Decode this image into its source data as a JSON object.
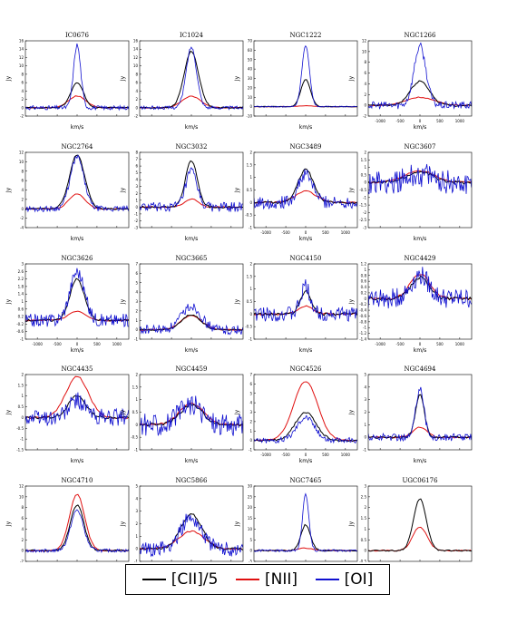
{
  "legend": [
    {
      "label": "[CII]/5",
      "color": "#000000"
    },
    {
      "label": "[NII]",
      "color": "#e01010"
    },
    {
      "label": "[OI]",
      "color": "#1010d0"
    }
  ],
  "chart_data": [
    {
      "type": "line",
      "title": "IC0676",
      "xlabel": "",
      "ylabel": "Jy",
      "ylim": [
        -2,
        16
      ],
      "yticks": [
        -2,
        0,
        2,
        4,
        6,
        8,
        10,
        12,
        14,
        16
      ],
      "show_xticks": false,
      "peaks": {
        "cii": 6,
        "nii": 2.8,
        "oi": 15
      },
      "widths": {
        "cii": 160,
        "nii": 220,
        "oi": 90
      },
      "noise": {
        "cii": 0.15,
        "nii": 0.1,
        "oi": 0.5
      }
    },
    {
      "type": "line",
      "title": "IC1024",
      "xlabel": "",
      "ylabel": "Jy",
      "ylim": [
        -2,
        16
      ],
      "yticks": [
        -2,
        0,
        2,
        4,
        6,
        8,
        10,
        12,
        14,
        16
      ],
      "show_xticks": false,
      "peaks": {
        "cii": 13.5,
        "nii": 2.8,
        "oi": 14.5
      },
      "widths": {
        "cii": 180,
        "nii": 230,
        "oi": 130
      },
      "noise": {
        "cii": 0.15,
        "nii": 0.1,
        "oi": 0.4
      }
    },
    {
      "type": "line",
      "title": "NGC1222",
      "xlabel": "",
      "ylabel": "Jy",
      "ylim": [
        -10,
        70
      ],
      "yticks": [
        -10,
        0,
        10,
        20,
        30,
        40,
        50,
        60,
        70
      ],
      "show_xticks": false,
      "peaks": {
        "cii": 29,
        "nii": 1,
        "oi": 65
      },
      "widths": {
        "cii": 120,
        "nii": 200,
        "oi": 95
      },
      "noise": {
        "cii": 0.3,
        "nii": 0.2,
        "oi": 0.6
      }
    },
    {
      "type": "line",
      "title": "NGC1266",
      "xlabel": "",
      "ylabel": "Jy",
      "ylim": [
        -2,
        12
      ],
      "yticks": [
        -2,
        0,
        2,
        4,
        6,
        8,
        10,
        12
      ],
      "show_xticks": true,
      "peaks": {
        "cii": 4.5,
        "nii": 1.5,
        "oi": 11
      },
      "widths": {
        "cii": 240,
        "nii": 350,
        "oi": 150
      },
      "noise": {
        "cii": 0.2,
        "nii": 0.1,
        "oi": 0.7
      }
    },
    {
      "type": "line",
      "title": "NGC2764",
      "xlabel": "",
      "ylabel": "Jy",
      "ylim": [
        -4,
        12
      ],
      "yticks": [
        -4,
        -2,
        0,
        2,
        4,
        6,
        8,
        10,
        12
      ],
      "show_xticks": false,
      "peaks": {
        "cii": 11.5,
        "nii": 3.2,
        "oi": 11
      },
      "widths": {
        "cii": 190,
        "nii": 200,
        "oi": 170
      },
      "noise": {
        "cii": 0.15,
        "nii": 0.1,
        "oi": 0.6
      }
    },
    {
      "type": "line",
      "title": "NGC3032",
      "xlabel": "",
      "ylabel": "Jy",
      "ylim": [
        -3,
        8
      ],
      "yticks": [
        -3,
        -2,
        -1,
        0,
        1,
        2,
        3,
        4,
        5,
        6,
        7,
        8
      ],
      "show_xticks": false,
      "peaks": {
        "cii": 6.8,
        "nii": 1.2,
        "oi": 5.2
      },
      "widths": {
        "cii": 150,
        "nii": 170,
        "oi": 140
      },
      "noise": {
        "cii": 0.15,
        "nii": 0.1,
        "oi": 0.7
      }
    },
    {
      "type": "line",
      "title": "NGC3489",
      "xlabel": "",
      "ylabel": "Jy",
      "ylim": [
        -1.0,
        2.0
      ],
      "yticks": [
        -1.0,
        -0.5,
        0.0,
        0.5,
        1.0,
        1.5,
        2.0
      ],
      "show_xticks": true,
      "peaks": {
        "cii": 1.3,
        "nii": 0.45,
        "oi": 1.1
      },
      "widths": {
        "cii": 200,
        "nii": 260,
        "oi": 180
      },
      "noise": {
        "cii": 0.05,
        "nii": 0.03,
        "oi": 0.25
      }
    },
    {
      "type": "line",
      "title": "NGC3607",
      "xlabel": "",
      "ylabel": "Jy",
      "ylim": [
        -3.0,
        2.0
      ],
      "yticks": [
        -3.0,
        -2.5,
        -2.0,
        -1.5,
        -1.0,
        -0.5,
        0.0,
        0.5,
        1.0,
        1.5,
        2.0
      ],
      "show_xticks": false,
      "peaks": {
        "cii": 0.7,
        "nii": 0.8,
        "oi": 0.5
      },
      "widths": {
        "cii": 320,
        "nii": 380,
        "oi": 300
      },
      "noise": {
        "cii": 0.1,
        "nii": 0.06,
        "oi": 0.8
      }
    },
    {
      "type": "line",
      "title": "NGC3626",
      "xlabel": "",
      "ylabel": "Jy",
      "ylim": [
        -1.0,
        3.0
      ],
      "yticks": [
        -1.0,
        -0.6,
        -0.2,
        0.2,
        0.6,
        1.0,
        1.4,
        1.8,
        2.2,
        2.6,
        3.0
      ],
      "show_xticks": true,
      "peaks": {
        "cii": 2.2,
        "nii": 0.5,
        "oi": 2.6
      },
      "widths": {
        "cii": 180,
        "nii": 220,
        "oi": 180
      },
      "noise": {
        "cii": 0.06,
        "nii": 0.04,
        "oi": 0.35
      }
    },
    {
      "type": "line",
      "title": "NGC3665",
      "xlabel": "",
      "ylabel": "Jy",
      "ylim": [
        -1,
        7
      ],
      "yticks": [
        -1,
        0,
        1,
        2,
        3,
        4,
        5,
        6,
        7
      ],
      "show_xticks": false,
      "peaks": {
        "cii": 1.6,
        "nii": 1.5,
        "oi": 2.5
      },
      "widths": {
        "cii": 240,
        "nii": 260,
        "oi": 240
      },
      "noise": {
        "cii": 0.08,
        "nii": 0.06,
        "oi": 0.5
      }
    },
    {
      "type": "line",
      "title": "NGC4150",
      "xlabel": "",
      "ylabel": "Jy",
      "ylim": [
        -1.0,
        2.0
      ],
      "yticks": [
        -1.0,
        -0.5,
        0.0,
        0.5,
        1.0,
        1.5,
        2.0
      ],
      "show_xticks": false,
      "peaks": {
        "cii": 0.9,
        "nii": 0.3,
        "oi": 1.1
      },
      "widths": {
        "cii": 140,
        "nii": 200,
        "oi": 120
      },
      "noise": {
        "cii": 0.06,
        "nii": 0.04,
        "oi": 0.3
      }
    },
    {
      "type": "line",
      "title": "NGC4429",
      "xlabel": "",
      "ylabel": "Jy",
      "ylim": [
        -1.4,
        1.2
      ],
      "yticks": [
        -1.4,
        -1.2,
        -1.0,
        -0.8,
        -0.6,
        -0.4,
        -0.2,
        0.0,
        0.2,
        0.4,
        0.6,
        0.8,
        1.0,
        1.2
      ],
      "show_xticks": true,
      "peaks": {
        "cii": 0.75,
        "nii": 0.85,
        "oi": 0.8
      },
      "widths": {
        "cii": 220,
        "nii": 250,
        "oi": 220
      },
      "noise": {
        "cii": 0.06,
        "nii": 0.04,
        "oi": 0.35
      }
    },
    {
      "type": "line",
      "title": "NGC4435",
      "xlabel": "",
      "ylabel": "Jy",
      "ylim": [
        -1.5,
        2.0
      ],
      "yticks": [
        -1.5,
        -1.0,
        -0.5,
        0.0,
        0.5,
        1.0,
        1.5,
        2.0
      ],
      "show_xticks": false,
      "peaks": {
        "cii": 1.0,
        "nii": 1.9,
        "oi": 0.8
      },
      "widths": {
        "cii": 220,
        "nii": 280,
        "oi": 200
      },
      "noise": {
        "cii": 0.06,
        "nii": 0.04,
        "oi": 0.4
      }
    },
    {
      "type": "line",
      "title": "NGC4459",
      "xlabel": "",
      "ylabel": "Jy",
      "ylim": [
        -1.0,
        2.0
      ],
      "yticks": [
        -1.0,
        -0.5,
        0.0,
        0.5,
        1.0,
        1.5,
        2.0
      ],
      "show_xticks": false,
      "peaks": {
        "cii": 0.8,
        "nii": 0.85,
        "oi": 0.8
      },
      "widths": {
        "cii": 280,
        "nii": 300,
        "oi": 280
      },
      "noise": {
        "cii": 0.06,
        "nii": 0.04,
        "oi": 0.45
      }
    },
    {
      "type": "line",
      "title": "NGC4526",
      "xlabel": "",
      "ylabel": "Jy",
      "ylim": [
        -1,
        7
      ],
      "yticks": [
        -1,
        0,
        1,
        2,
        3,
        4,
        5,
        6,
        7
      ],
      "show_xticks": true,
      "peaks": {
        "cii": 3.0,
        "nii": 6.3,
        "oi": 2.5
      },
      "widths": {
        "cii": 260,
        "nii": 300,
        "oi": 220
      },
      "noise": {
        "cii": 0.1,
        "nii": 0.06,
        "oi": 0.3
      }
    },
    {
      "type": "line",
      "title": "NGC4694",
      "xlabel": "",
      "ylabel": "Jy",
      "ylim": [
        -1,
        5
      ],
      "yticks": [
        -1,
        0,
        1,
        2,
        3,
        4,
        5
      ],
      "show_xticks": false,
      "peaks": {
        "cii": 3.4,
        "nii": 0.8,
        "oi": 4.0
      },
      "widths": {
        "cii": 110,
        "nii": 170,
        "oi": 100
      },
      "noise": {
        "cii": 0.08,
        "nii": 0.05,
        "oi": 0.3
      }
    },
    {
      "type": "line",
      "title": "NGC4710",
      "xlabel": "",
      "ylabel": "Jy",
      "ylim": [
        -2,
        12
      ],
      "yticks": [
        -2,
        0,
        2,
        4,
        6,
        8,
        10,
        12
      ],
      "show_xticks": true,
      "peaks": {
        "cii": 8.5,
        "nii": 10.5,
        "oi": 7.5
      },
      "widths": {
        "cii": 170,
        "nii": 190,
        "oi": 160
      },
      "noise": {
        "cii": 0.15,
        "nii": 0.1,
        "oi": 0.3
      }
    },
    {
      "type": "line",
      "title": "NGC5866",
      "xlabel": "",
      "ylabel": "Jy",
      "ylim": [
        -1,
        5
      ],
      "yticks": [
        -1,
        0,
        1,
        2,
        3,
        4,
        5
      ],
      "show_xticks": true,
      "peaks": {
        "cii": 2.8,
        "nii": 1.4,
        "oi": 2.5
      },
      "widths": {
        "cii": 260,
        "nii": 320,
        "oi": 260
      },
      "noise": {
        "cii": 0.1,
        "nii": 0.06,
        "oi": 0.6
      }
    },
    {
      "type": "line",
      "title": "NGC7465",
      "xlabel": "",
      "ylabel": "Jy",
      "ylim": [
        -5,
        30
      ],
      "yticks": [
        -5,
        0,
        5,
        10,
        15,
        20,
        25,
        30
      ],
      "show_xticks": true,
      "peaks": {
        "cii": 12,
        "nii": 1.2,
        "oi": 26
      },
      "widths": {
        "cii": 120,
        "nii": 180,
        "oi": 80
      },
      "noise": {
        "cii": 0.3,
        "nii": 0.2,
        "oi": 0.5
      }
    },
    {
      "type": "line",
      "title": "UGC06176",
      "xlabel": "",
      "ylabel": "Jy",
      "ylim": [
        -0.5,
        3.0
      ],
      "yticks": [
        -0.5,
        0.0,
        0.5,
        1.0,
        1.5,
        2.0,
        2.5,
        3.0
      ],
      "show_xticks": true,
      "peaks": {
        "cii": 2.4,
        "nii": 1.1,
        "oi": 0
      },
      "widths": {
        "cii": 160,
        "nii": 180,
        "oi": 100
      },
      "noise": {
        "cii": 0.03,
        "nii": 0.03,
        "oi": 0
      }
    }
  ],
  "shared": {
    "xlabel": "km/s",
    "xticks": [
      -1000,
      -500,
      0,
      500,
      1000
    ],
    "xlim": [
      -1300,
      1300
    ]
  }
}
